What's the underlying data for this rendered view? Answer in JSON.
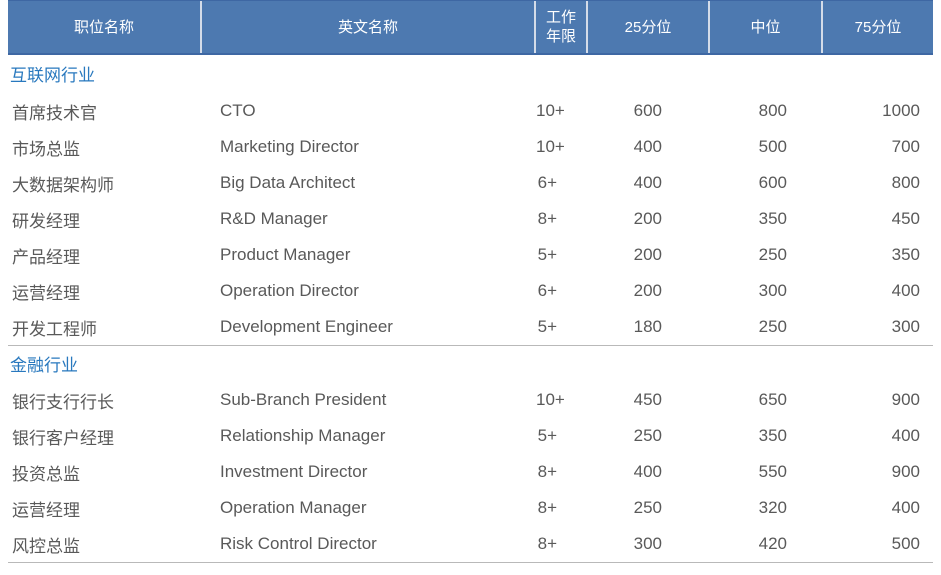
{
  "table": {
    "columns": [
      {
        "key": "position",
        "label": "职位名称"
      },
      {
        "key": "english",
        "label": "英文名称"
      },
      {
        "key": "years",
        "label": "工作\n年限"
      },
      {
        "key": "p25",
        "label": "25分位"
      },
      {
        "key": "median",
        "label": "中位"
      },
      {
        "key": "p75",
        "label": "75分位"
      }
    ],
    "sections": [
      {
        "title": "互联网行业",
        "rows": [
          {
            "position": "首席技术官",
            "english": "CTO",
            "years": "10+",
            "p25": "600",
            "median": "800",
            "p75": "1000"
          },
          {
            "position": "市场总监",
            "english": "Marketing Director",
            "years": "10+",
            "p25": "400",
            "median": "500",
            "p75": "700"
          },
          {
            "position": "大数据架构师",
            "english": "Big Data Architect",
            "years": "6+",
            "p25": "400",
            "median": "600",
            "p75": "800"
          },
          {
            "position": "研发经理",
            "english": "R&D Manager",
            "years": "8+",
            "p25": "200",
            "median": "350",
            "p75": "450"
          },
          {
            "position": "产品经理",
            "english": "Product Manager",
            "years": "5+",
            "p25": "200",
            "median": "250",
            "p75": "350"
          },
          {
            "position": "运营经理",
            "english": "Operation Director",
            "years": "6+",
            "p25": "200",
            "median": "300",
            "p75": "400"
          },
          {
            "position": "开发工程师",
            "english": "Development Engineer",
            "years": "5+",
            "p25": "180",
            "median": "250",
            "p75": "300"
          }
        ]
      },
      {
        "title": "金融行业",
        "rows": [
          {
            "position": "银行支行行长",
            "english": "Sub-Branch President",
            "years": "10+",
            "p25": "450",
            "median": "650",
            "p75": "900"
          },
          {
            "position": "银行客户经理",
            "english": "Relationship Manager",
            "years": "5+",
            "p25": "250",
            "median": "350",
            "p75": "400"
          },
          {
            "position": "投资总监",
            "english": "Investment Director",
            "years": "8+",
            "p25": "400",
            "median": "550",
            "p75": "900"
          },
          {
            "position": "运营经理",
            "english": "Operation Manager",
            "years": "8+",
            "p25": "250",
            "median": "320",
            "p75": "400"
          },
          {
            "position": "风控总监",
            "english": "Risk Control Director",
            "years": "8+",
            "p25": "300",
            "median": "420",
            "p75": "500"
          }
        ]
      }
    ]
  },
  "colors": {
    "header_background": "#4d79b0",
    "header_border": "#3e67a3",
    "header_separator": "#d4dce9",
    "header_text": "#ffffff",
    "section_title_text": "#2878be",
    "body_text": "#595959",
    "divider_line": "#b9b9b9"
  }
}
